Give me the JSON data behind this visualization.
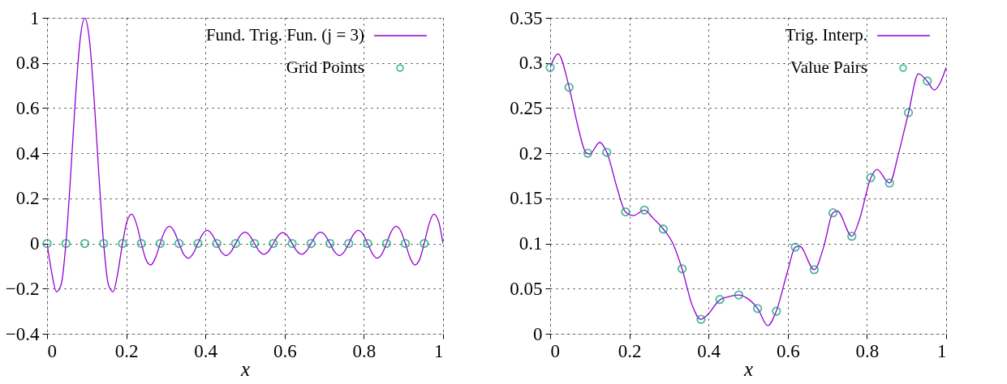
{
  "chart_data": [
    {
      "type": "line",
      "xlabel": "x",
      "xlim": [
        0,
        1
      ],
      "ylim": [
        -0.4,
        1
      ],
      "xticks": [
        0,
        0.2,
        0.4,
        0.6,
        0.8,
        1
      ],
      "yticks": [
        {
          "value": -0.4,
          "label": "−0.4"
        },
        {
          "value": -0.2,
          "label": "−0.2"
        },
        0,
        0.2,
        0.4,
        0.6,
        0.8,
        1
      ],
      "grid": true,
      "legend": "top right",
      "series": [
        {
          "name": "Fund. Trig. Fun. (j = 3)",
          "type": "line",
          "color": "#9400d3",
          "x": [
            0,
            0.0119,
            0.0238,
            0.0357,
            0.0476,
            0.0595,
            0.0714,
            0.0833,
            0.0952,
            0.1071,
            0.119,
            0.131,
            0.1429,
            0.1548,
            0.1667,
            0.1786,
            0.1905,
            0.2024,
            0.2143,
            0.2262,
            0.2381,
            0.25,
            0.2619,
            0.2738,
            0.2857,
            0.2976,
            0.3095,
            0.3214,
            0.3333,
            0.3452,
            0.3571,
            0.369,
            0.381,
            0.3929,
            0.4048,
            0.4167,
            0.4286,
            0.4405,
            0.4524,
            0.4643,
            0.4762,
            0.4881,
            0.5,
            0.5119,
            0.5238,
            0.5357,
            0.5476,
            0.5595,
            0.5714,
            0.5833,
            0.5952,
            0.6071,
            0.619,
            0.631,
            0.6429,
            0.6548,
            0.6667,
            0.6786,
            0.6905,
            0.7024,
            0.7143,
            0.7262,
            0.7381,
            0.75,
            0.7619,
            0.7738,
            0.7857,
            0.7976,
            0.8095,
            0.8214,
            0.8333,
            0.8452,
            0.8571,
            0.869,
            0.881,
            0.8929,
            0.9048,
            0.9167,
            0.9286,
            0.9405,
            0.9524,
            0.9643,
            0.9762,
            0.9881,
            1
          ],
          "values": [
            0,
            -0.13,
            -0.214,
            -0.181,
            0,
            0.301,
            0.637,
            0.901,
            1,
            0.901,
            0.637,
            0.301,
            0,
            -0.181,
            -0.214,
            -0.13,
            0,
            0.102,
            0.13,
            0.084,
            0,
            -0.072,
            -0.095,
            -0.063,
            0,
            0.057,
            0.076,
            0.052,
            0,
            -0.048,
            -0.065,
            -0.044,
            0,
            0.042,
            0.058,
            0.04,
            0,
            -0.038,
            -0.053,
            -0.037,
            0,
            0.036,
            0.05,
            0.035,
            0,
            -0.034,
            -0.048,
            -0.034,
            0,
            0.034,
            0.048,
            0.034,
            0,
            -0.034,
            -0.048,
            -0.034,
            0,
            0.035,
            0.05,
            0.036,
            0,
            -0.037,
            -0.053,
            -0.038,
            0,
            0.04,
            0.058,
            0.042,
            0,
            -0.044,
            -0.065,
            -0.048,
            0,
            0.052,
            0.076,
            0.057,
            0,
            -0.063,
            -0.095,
            -0.072,
            0,
            0.084,
            0.13,
            0.102,
            0
          ]
        },
        {
          "name": "Grid Points",
          "type": "scatter",
          "color": "#009e73",
          "x": [
            0,
            0.0476,
            0.0952,
            0.1429,
            0.1905,
            0.2381,
            0.2857,
            0.3333,
            0.381,
            0.4286,
            0.4762,
            0.5238,
            0.5714,
            0.619,
            0.6667,
            0.7143,
            0.7619,
            0.8095,
            0.8571,
            0.9048,
            0.9524
          ],
          "values": [
            0,
            0,
            0,
            0,
            0,
            0,
            0,
            0,
            0,
            0,
            0,
            0,
            0,
            0,
            0,
            0,
            0,
            0,
            0,
            0,
            0
          ]
        }
      ]
    },
    {
      "type": "line",
      "xlabel": "x",
      "xlim": [
        0,
        1
      ],
      "ylim": [
        0,
        0.35
      ],
      "xticks": [
        0,
        0.2,
        0.4,
        0.6,
        0.8,
        1
      ],
      "yticks": [
        0,
        0.05,
        0.1,
        0.15,
        0.2,
        0.25,
        0.3,
        0.35
      ],
      "grid": true,
      "legend": "top right",
      "series": [
        {
          "name": "Trig. Interp.",
          "type": "line",
          "color": "#9400d3",
          "x": [
            0,
            0.02,
            0.048,
            0.07,
            0.09,
            0.1,
            0.125,
            0.143,
            0.17,
            0.19,
            0.21,
            0.238,
            0.26,
            0.286,
            0.31,
            0.333,
            0.36,
            0.38,
            0.395,
            0.43,
            0.45,
            0.476,
            0.495,
            0.524,
            0.55,
            0.571,
            0.6,
            0.619,
            0.63,
            0.667,
            0.69,
            0.714,
            0.725,
            0.762,
            0.78,
            0.81,
            0.825,
            0.857,
            0.88,
            0.905,
            0.93,
            0.952,
            0.97,
            0.985,
            1
          ],
          "values": [
            0.295,
            0.31,
            0.273,
            0.23,
            0.201,
            0.199,
            0.212,
            0.201,
            0.16,
            0.135,
            0.131,
            0.137,
            0.128,
            0.116,
            0.1,
            0.072,
            0.03,
            0.016,
            0.02,
            0.038,
            0.041,
            0.043,
            0.04,
            0.028,
            0.009,
            0.025,
            0.07,
            0.096,
            0.097,
            0.071,
            0.095,
            0.134,
            0.136,
            0.108,
            0.125,
            0.173,
            0.182,
            0.167,
            0.2,
            0.245,
            0.288,
            0.28,
            0.27,
            0.278,
            0.295
          ]
        },
        {
          "name": "Value Pairs",
          "type": "scatter",
          "color": "#009e73",
          "x": [
            0,
            0.0476,
            0.0952,
            0.1429,
            0.1905,
            0.2381,
            0.2857,
            0.3333,
            0.381,
            0.4286,
            0.4762,
            0.5238,
            0.5714,
            0.619,
            0.6667,
            0.7143,
            0.7619,
            0.8095,
            0.8571,
            0.9048,
            0.9524
          ],
          "values": [
            0.295,
            0.273,
            0.2,
            0.201,
            0.135,
            0.137,
            0.116,
            0.072,
            0.016,
            0.038,
            0.043,
            0.028,
            0.025,
            0.096,
            0.071,
            0.134,
            0.108,
            0.173,
            0.167,
            0.245,
            0.28
          ]
        }
      ]
    }
  ]
}
